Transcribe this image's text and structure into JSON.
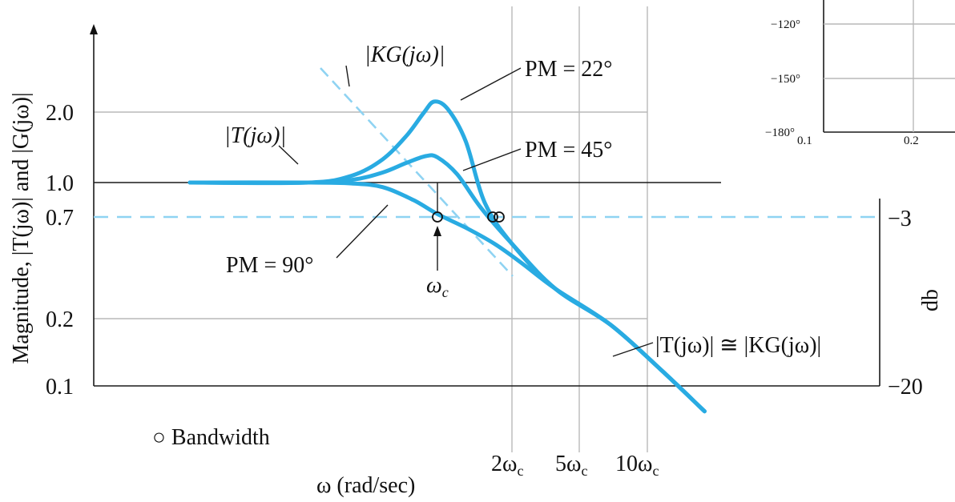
{
  "chart_data": [
    {
      "type": "line",
      "title": "",
      "xlabel": "ω (rad/sec)",
      "ylabel": "Magnitude, |T(jω)| and |G(jω)|",
      "ylabel_right": "db",
      "x_tick_labels": [
        "2ωc",
        "5ωc",
        "10ωc"
      ],
      "y_tick_labels": [
        "2.0",
        "1.0",
        "0.7",
        "0.2",
        "0.1"
      ],
      "y_right_tick_labels": [
        "−3",
        "−20"
      ],
      "x_scale": "log",
      "y_scale": "log",
      "grid": true,
      "series": [
        {
          "name": "PM = 22°",
          "x": [
            0.1,
            0.3,
            0.45,
            0.6,
            0.75,
            0.88,
            0.97,
            1.1,
            1.3,
            1.55,
            2.0,
            3.0,
            5.0,
            8.0,
            12.0
          ],
          "y": [
            1.0,
            1.0,
            1.08,
            1.3,
            1.7,
            2.2,
            2.5,
            2.3,
            1.6,
            0.8,
            0.5,
            0.3,
            0.2,
            0.12,
            0.075
          ]
        },
        {
          "name": "PM = 45°",
          "x": [
            0.1,
            0.3,
            0.45,
            0.6,
            0.75,
            0.9,
            1.0,
            1.2,
            1.5,
            2.0,
            3.0,
            5.0,
            8.0,
            12.0
          ],
          "y": [
            1.0,
            1.0,
            1.03,
            1.12,
            1.25,
            1.35,
            1.33,
            1.1,
            0.75,
            0.5,
            0.3,
            0.2,
            0.12,
            0.075
          ]
        },
        {
          "name": "PM = 90°",
          "x": [
            0.1,
            0.3,
            0.45,
            0.6,
            0.8,
            1.0,
            1.3,
            1.7,
            2.2,
            3.0,
            5.0,
            8.0,
            12.0
          ],
          "y": [
            1.0,
            1.0,
            0.99,
            0.95,
            0.82,
            0.7,
            0.6,
            0.5,
            0.4,
            0.3,
            0.2,
            0.12,
            0.075
          ]
        }
      ],
      "reference_lines": [
        {
          "label": "|KG(jω)|",
          "style": "dashed",
          "description": "asymptote of open-loop gain"
        },
        {
          "value": 0.7,
          "style": "dashed"
        }
      ],
      "annotations": [
        "|T(jω)|",
        "|KG(jω)|",
        "PM = 22°",
        "PM = 45°",
        "PM = 90°",
        "ωc",
        "|T(jω)| ≅ |KG(jω)|",
        "○ Bandwidth"
      ],
      "bandwidth_markers_x": [
        1.0,
        1.85,
        1.93
      ]
    },
    {
      "type": "line",
      "title": "",
      "y_tick_labels": [
        "−120°",
        "−150°",
        "−180°"
      ],
      "x_tick_labels": [
        "0.1",
        "0.2"
      ],
      "grid": true,
      "note": "cropped inset, partially visible"
    }
  ],
  "labels": {
    "ylabel": "Magnitude, |T(jω)| and |G(jω)|",
    "xlabel": "ω (rad/sec)",
    "ylabel_right": "db",
    "y2": "2.0",
    "y1": "1.0",
    "y07": "0.7",
    "y02": "0.2",
    "y01": "0.1",
    "r3": "−3",
    "r20": "−20",
    "x2": "2ω",
    "x5": "5ω",
    "x10": "10ω",
    "sub_c": "c",
    "Tj": "|T(jω)|",
    "KG": "|KG(jω)|",
    "pm22": "PM = 22°",
    "pm45": "PM = 45°",
    "pm90": "PM = 90°",
    "omega_c": "ω",
    "approx": "|T(jω)| ≅ |KG(jω)|",
    "bandwidth": "○ Bandwidth",
    "inset_120": "−120°",
    "inset_150": "−150°",
    "inset_180": "−180°",
    "inset_01": "0.1",
    "inset_02": "0.2"
  }
}
